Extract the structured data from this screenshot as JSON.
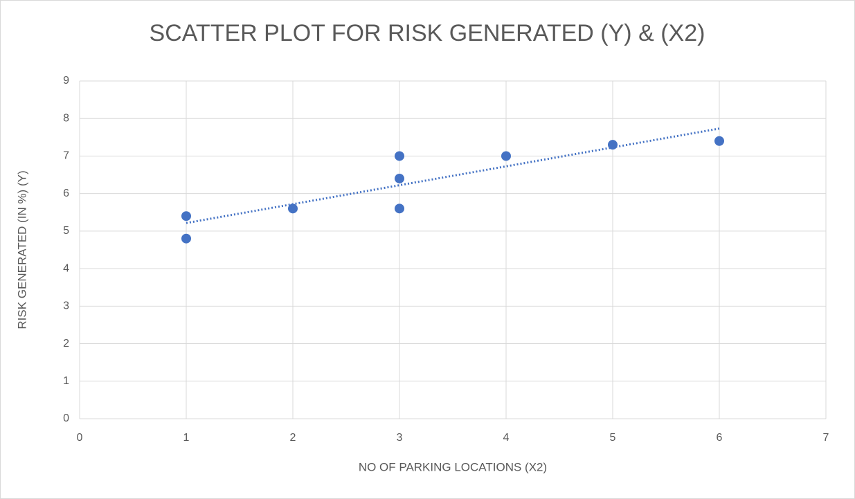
{
  "chart_data": {
    "type": "scatter",
    "title": "SCATTER PLOT FOR RISK GENERATED (Y) & (X2)",
    "x_label": "NO OF PARKING LOCATIONS (X2)",
    "y_label": "RISK GENERATED (IN %) (Y)",
    "x": [
      1,
      1,
      2,
      3,
      3,
      3,
      4,
      5,
      6
    ],
    "values": [
      5.4,
      4.8,
      5.6,
      7,
      6.4,
      5.6,
      7,
      7.3,
      7.4
    ],
    "color": "#4472c4",
    "trendline": "linear",
    "xlim": [
      0,
      7
    ],
    "xticks": [
      0,
      1,
      2,
      3,
      4,
      5,
      6,
      7
    ],
    "ylim": [
      0,
      9
    ],
    "yticks": [
      0,
      1,
      2,
      3,
      4,
      5,
      6,
      7,
      8,
      9
    ],
    "grid": true
  }
}
